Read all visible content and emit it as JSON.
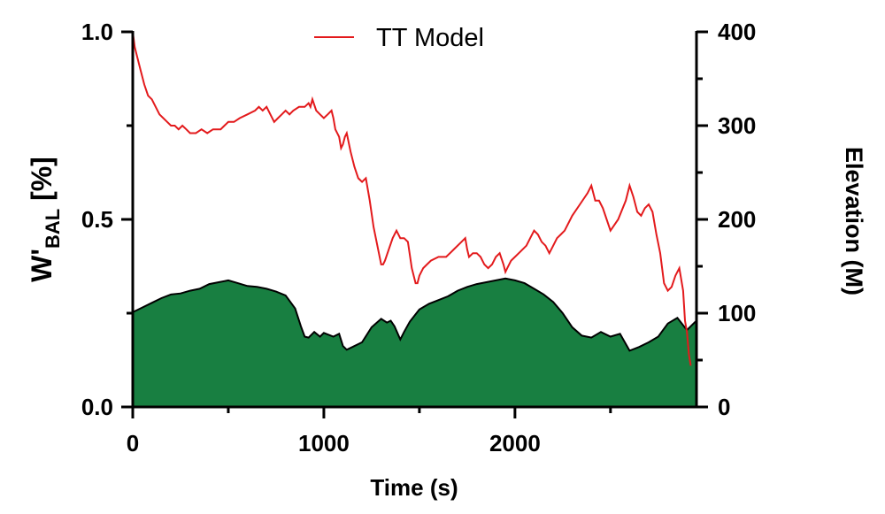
{
  "chart_data": {
    "type": "line",
    "title": "",
    "legend": {
      "position": "top-center",
      "entries": [
        {
          "label": "TT Model",
          "color": "#e31a1c"
        }
      ]
    },
    "x_axis": {
      "label": "Time (s)",
      "lim": [
        0,
        2950
      ],
      "ticks": [
        0,
        1000,
        2000
      ],
      "tick_labels": [
        "0",
        "1000",
        "2000"
      ]
    },
    "y_left": {
      "label_main": "W'",
      "label_sub": "BAL",
      "label_rest": " [%]",
      "lim": [
        0,
        1
      ],
      "ticks": [
        0,
        0.5,
        1
      ],
      "tick_labels": [
        "0.0",
        "0.5",
        "1.0"
      ]
    },
    "y_right": {
      "label": "Elevation (M)",
      "lim": [
        0,
        400
      ],
      "ticks": [
        0,
        100,
        200,
        300,
        400
      ],
      "tick_labels": [
        "0",
        "100",
        "200",
        "300",
        "400"
      ]
    },
    "series": [
      {
        "name": "TT Model",
        "axis": "left",
        "style": "line",
        "color": "#e31a1c",
        "x": [
          0,
          10,
          20,
          40,
          60,
          80,
          100,
          120,
          140,
          160,
          180,
          200,
          220,
          240,
          260,
          280,
          300,
          330,
          360,
          390,
          420,
          450,
          460,
          480,
          500,
          530,
          560,
          600,
          640,
          660,
          680,
          700,
          720,
          740,
          760,
          780,
          800,
          820,
          840,
          870,
          900,
          920,
          930,
          940,
          960,
          980,
          1000,
          1020,
          1040,
          1050,
          1060,
          1080,
          1090,
          1100,
          1110,
          1120,
          1140,
          1160,
          1180,
          1200,
          1220,
          1240,
          1260,
          1280,
          1300,
          1310,
          1320,
          1340,
          1360,
          1380,
          1400,
          1420,
          1440,
          1460,
          1480,
          1490,
          1500,
          1520,
          1540,
          1560,
          1600,
          1640,
          1680,
          1720,
          1740,
          1750,
          1760,
          1780,
          1800,
          1820,
          1840,
          1860,
          1880,
          1900,
          1920,
          1940,
          1950,
          1960,
          1980,
          2000,
          2020,
          2040,
          2060,
          2080,
          2100,
          2120,
          2140,
          2160,
          2180,
          2200,
          2220,
          2240,
          2260,
          2300,
          2340,
          2380,
          2400,
          2420,
          2440,
          2460,
          2480,
          2500,
          2540,
          2580,
          2600,
          2620,
          2640,
          2660,
          2680,
          2700,
          2720,
          2740,
          2760,
          2780,
          2800,
          2820,
          2840,
          2860,
          2880,
          2890,
          2900,
          2910,
          2920
        ],
        "y": [
          1.0,
          0.96,
          0.94,
          0.9,
          0.86,
          0.83,
          0.82,
          0.8,
          0.78,
          0.77,
          0.76,
          0.75,
          0.75,
          0.74,
          0.75,
          0.74,
          0.73,
          0.73,
          0.74,
          0.73,
          0.74,
          0.74,
          0.74,
          0.75,
          0.76,
          0.76,
          0.77,
          0.78,
          0.79,
          0.8,
          0.79,
          0.8,
          0.78,
          0.76,
          0.77,
          0.78,
          0.79,
          0.78,
          0.79,
          0.8,
          0.8,
          0.81,
          0.8,
          0.82,
          0.79,
          0.78,
          0.77,
          0.78,
          0.79,
          0.77,
          0.74,
          0.72,
          0.69,
          0.7,
          0.72,
          0.73,
          0.68,
          0.64,
          0.61,
          0.6,
          0.61,
          0.55,
          0.48,
          0.43,
          0.38,
          0.38,
          0.39,
          0.42,
          0.45,
          0.47,
          0.45,
          0.45,
          0.44,
          0.37,
          0.33,
          0.33,
          0.35,
          0.37,
          0.38,
          0.39,
          0.4,
          0.4,
          0.42,
          0.44,
          0.45,
          0.42,
          0.4,
          0.41,
          0.41,
          0.4,
          0.38,
          0.37,
          0.38,
          0.4,
          0.41,
          0.38,
          0.36,
          0.37,
          0.39,
          0.4,
          0.41,
          0.42,
          0.43,
          0.45,
          0.47,
          0.46,
          0.44,
          0.43,
          0.41,
          0.43,
          0.45,
          0.46,
          0.47,
          0.51,
          0.54,
          0.57,
          0.59,
          0.55,
          0.55,
          0.53,
          0.5,
          0.47,
          0.5,
          0.55,
          0.59,
          0.56,
          0.52,
          0.51,
          0.53,
          0.54,
          0.52,
          0.46,
          0.41,
          0.33,
          0.31,
          0.32,
          0.35,
          0.37,
          0.31,
          0.23,
          0.2,
          0.14,
          0.11
        ]
      },
      {
        "name": "Elevation",
        "axis": "right",
        "style": "area",
        "color": "#1a7f41",
        "x": [
          0,
          50,
          100,
          150,
          200,
          250,
          300,
          350,
          400,
          450,
          500,
          550,
          600,
          650,
          700,
          750,
          800,
          850,
          880,
          900,
          920,
          950,
          980,
          1000,
          1050,
          1080,
          1100,
          1120,
          1150,
          1200,
          1250,
          1300,
          1330,
          1350,
          1370,
          1400,
          1420,
          1450,
          1500,
          1550,
          1600,
          1650,
          1700,
          1750,
          1800,
          1850,
          1900,
          1950,
          2000,
          2050,
          2100,
          2150,
          2200,
          2250,
          2300,
          2350,
          2400,
          2450,
          2500,
          2550,
          2600,
          2650,
          2700,
          2750,
          2800,
          2850,
          2900,
          2920,
          2940,
          2950
        ],
        "y": [
          101,
          106,
          111,
          116,
          120,
          121,
          124,
          126,
          131,
          133,
          135,
          132,
          129,
          128,
          126,
          123,
          119,
          105,
          86,
          75,
          74,
          80,
          75,
          79,
          75,
          78,
          65,
          61,
          64,
          69,
          85,
          94,
          90,
          92,
          86,
          72,
          80,
          91,
          104,
          110,
          114,
          118,
          124,
          128,
          131,
          133,
          135,
          137,
          135,
          132,
          126,
          120,
          112,
          100,
          85,
          76,
          74,
          80,
          75,
          78,
          60,
          64,
          69,
          75,
          89,
          95,
          82,
          86,
          90,
          92
        ]
      }
    ]
  }
}
